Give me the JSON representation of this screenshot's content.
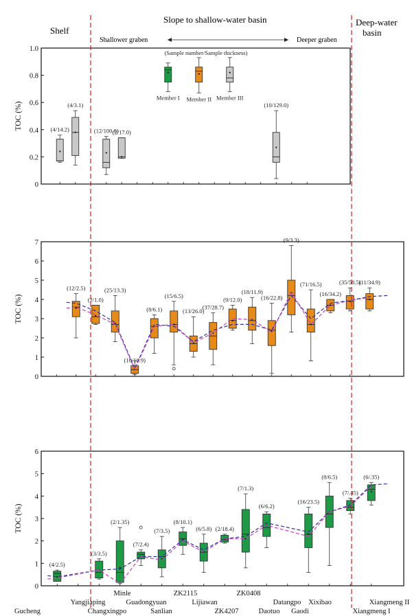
{
  "header": {
    "shelf": "Shelf",
    "slope": "Slope to shallow-water basin",
    "deep_line1": "Deep-water",
    "deep_line2": "basin",
    "shallower": "Shallower graben",
    "deeper": "Deeper graben"
  },
  "colors": {
    "gray": "#c9c9c9",
    "orange": "#e68a1a",
    "green": "#1e9a46",
    "divider": "#d42020",
    "trend_purple": "#c43ec4",
    "trend_blue": "#2f2f9a"
  },
  "chart_data": [
    {
      "type": "box",
      "panel": "top",
      "ylabel": "TOC (%)",
      "ylim": [
        0,
        1.0
      ],
      "yticks": [
        "0",
        "0.2",
        "0.4",
        "0.6",
        "0.8",
        "1.0"
      ],
      "annotation": "(Sample number/Sample thickness)",
      "boxes": [
        {
          "slot": 1,
          "color": "gray",
          "label": "(4/14.2)",
          "min": 0.16,
          "q1": 0.17,
          "median": 0.17,
          "q3": 0.33,
          "max": 0.36,
          "mean": 0.24
        },
        {
          "slot": 2,
          "color": "gray",
          "label": "(4/3.1)",
          "min": 0.14,
          "q1": 0.21,
          "median": 0.38,
          "q3": 0.49,
          "max": 0.54,
          "mean": 0.38
        },
        {
          "slot": 4,
          "color": "gray",
          "label": "(12/100.8)",
          "min": 0.07,
          "q1": 0.12,
          "median": 0.16,
          "q3": 0.33,
          "max": 0.35,
          "mean": 0.23
        },
        {
          "slot": 5,
          "color": "gray",
          "label": "(2/17.0)",
          "min": 0.19,
          "q1": 0.19,
          "median": 0.2,
          "q3": 0.34,
          "max": 0.34,
          "mean": 0.2
        },
        {
          "slot": 8,
          "color": "green",
          "label": "Member I",
          "min": 0.68,
          "q1": 0.75,
          "median": 0.84,
          "q3": 0.86,
          "max": 0.89,
          "mean": 0.82
        },
        {
          "slot": 10,
          "color": "orange",
          "label": "Member II",
          "min": 0.67,
          "q1": 0.75,
          "median": 0.83,
          "q3": 0.86,
          "max": 0.93,
          "mean": 0.81
        },
        {
          "slot": 12,
          "color": "gray",
          "label": "Member III",
          "min": 0.68,
          "q1": 0.75,
          "median": 0.78,
          "q3": 0.86,
          "max": 0.93,
          "mean": 0.82
        },
        {
          "slot": 15,
          "color": "gray",
          "label": "(10/129.0)",
          "min": 0.04,
          "q1": 0.16,
          "median": 0.2,
          "q3": 0.38,
          "max": 0.54,
          "mean": 0.27
        }
      ]
    },
    {
      "type": "box",
      "panel": "middle",
      "ylabel": "TOC (%)",
      "ylim": [
        0,
        7
      ],
      "yticks": [
        "0",
        "1",
        "2",
        "3",
        "4",
        "5",
        "6",
        "7"
      ],
      "boxes": [
        {
          "slot": 2,
          "label": "(12/2.5)",
          "min": 2.0,
          "q1": 3.1,
          "median": 3.6,
          "q3": 3.9,
          "max": 4.3,
          "mean": 3.55
        },
        {
          "slot": 3,
          "label": "(2/1.0)",
          "min": 2.7,
          "q1": 2.75,
          "median": 3.1,
          "q3": 3.7,
          "max": 3.7,
          "mean": 3.15
        },
        {
          "slot": 4,
          "label": "(25/13.3)",
          "min": 1.8,
          "q1": 2.3,
          "median": 2.7,
          "q3": 3.4,
          "max": 4.2,
          "mean": 2.75
        },
        {
          "slot": 5,
          "label": "(10/18.9)",
          "min": 0.1,
          "q1": 0.15,
          "median": 0.35,
          "q3": 0.55,
          "max": 0.8,
          "mean": 0.35
        },
        {
          "slot": 6,
          "label": "(8/6.1)",
          "min": 1.2,
          "q1": 2.0,
          "median": 2.6,
          "q3": 3.0,
          "max": 3.2,
          "mean": 2.6
        },
        {
          "slot": 7,
          "label": "(15/6.5)",
          "min": 0.6,
          "q1": 2.3,
          "median": 2.7,
          "q3": 3.4,
          "max": 3.9,
          "mean": 2.7,
          "outlier": 0.4
        },
        {
          "slot": 8,
          "label": "(13/26.0)",
          "min": 1.0,
          "q1": 1.3,
          "median": 1.7,
          "q3": 2.1,
          "max": 3.1,
          "mean": 1.75
        },
        {
          "slot": 9,
          "label": "(37/28.7)",
          "min": 0.6,
          "q1": 1.4,
          "median": 2.1,
          "q3": 2.8,
          "max": 3.3,
          "mean": 2.25
        },
        {
          "slot": 10,
          "label": "(9/12.0)",
          "min": 2.4,
          "q1": 2.5,
          "median": 2.9,
          "q3": 3.5,
          "max": 3.7,
          "mean": 2.9
        },
        {
          "slot": 11,
          "label": "(18/11.9)",
          "min": 1.7,
          "q1": 2.4,
          "median": 2.9,
          "q3": 3.6,
          "max": 4.1,
          "mean": 2.95
        },
        {
          "slot": 12,
          "label": "(16/22.8)",
          "min": 0.15,
          "q1": 1.6,
          "median": 2.4,
          "q3": 2.9,
          "max": 3.8,
          "mean": 2.35
        },
        {
          "slot": 13,
          "label": "(9/3.3)",
          "min": 2.3,
          "q1": 3.2,
          "median": 4.2,
          "q3": 5.0,
          "max": 6.8,
          "mean": 4.35
        },
        {
          "slot": 14,
          "label": "(71/16.5)",
          "min": 0.8,
          "q1": 2.3,
          "median": 2.7,
          "q3": 3.5,
          "max": 4.5,
          "mean": 2.7
        },
        {
          "slot": 15,
          "label": "(16/34.2)",
          "min": 3.3,
          "q1": 3.4,
          "median": 3.7,
          "q3": 4.0,
          "max": 4.0,
          "mean": 3.7
        },
        {
          "slot": 16,
          "label": "(35/58.5)",
          "min": 3.4,
          "q1": 3.5,
          "median": 3.9,
          "q3": 4.2,
          "max": 4.6,
          "mean": 3.9
        },
        {
          "slot": 17,
          "label": "(11/34.9)",
          "min": 3.4,
          "q1": 3.5,
          "median": 4.0,
          "q3": 4.3,
          "max": 4.6,
          "mean": 4.0
        }
      ],
      "trend_purple": [
        3.6,
        3.2,
        2.7,
        0.35,
        2.6,
        2.7,
        1.75,
        2.25,
        3.0,
        2.95,
        2.3,
        4.4,
        2.7,
        3.7,
        3.95,
        4.1
      ],
      "trend_blue": [
        3.8,
        3.4,
        2.8,
        0.4,
        2.7,
        2.6,
        1.8,
        2.4,
        2.7,
        2.7,
        2.4,
        4.2,
        3.0,
        3.8,
        3.95,
        4.15
      ]
    },
    {
      "type": "box",
      "panel": "bottom",
      "ylabel": "TOC (%)",
      "ylim": [
        0,
        6
      ],
      "yticks": [
        "0",
        "1",
        "2",
        "3",
        "4",
        "5",
        "6"
      ],
      "boxes": [
        {
          "slot": 1,
          "label": "(4/2.5)",
          "min": 0.2,
          "q1": 0.2,
          "median": 0.55,
          "q3": 0.65,
          "max": 0.7,
          "mean": 0.4
        },
        {
          "slot": 3,
          "label": "(3/3.5)",
          "min": 0.3,
          "q1": 0.35,
          "median": 0.6,
          "q3": 1.1,
          "max": 1.2,
          "mean": 0.7
        },
        {
          "slot": 4,
          "label": "(2/1.35)",
          "min": 0.1,
          "q1": 0.15,
          "median": 0.6,
          "q3": 2.0,
          "max": 2.6,
          "mean": 0.8
        },
        {
          "slot": 5,
          "label": "(7/2.4)",
          "min": 0.9,
          "q1": 1.2,
          "median": 1.4,
          "q3": 1.5,
          "max": 1.6,
          "mean": 1.3,
          "outlier": 2.6
        },
        {
          "slot": 6,
          "label": "(7/3.5)",
          "min": 0.4,
          "q1": 0.8,
          "median": 1.3,
          "q3": 1.6,
          "max": 2.2,
          "mean": 1.2
        },
        {
          "slot": 7,
          "label": "(8/10.1)",
          "min": 1.4,
          "q1": 1.8,
          "median": 2.1,
          "q3": 2.4,
          "max": 2.6,
          "mean": 2.05
        },
        {
          "slot": 8,
          "label": "(6/5.8)",
          "min": 0.6,
          "q1": 1.1,
          "median": 1.5,
          "q3": 1.9,
          "max": 2.3,
          "mean": 1.5
        },
        {
          "slot": 9,
          "label": "(2/18.4)",
          "min": 1.9,
          "q1": 1.95,
          "median": 2.05,
          "q3": 2.25,
          "max": 2.3,
          "mean": 2.1
        },
        {
          "slot": 10,
          "label": "(7/1.3)",
          "min": 0.8,
          "q1": 1.5,
          "median": 2.3,
          "q3": 3.4,
          "max": 4.1,
          "mean": 2.1
        },
        {
          "slot": 11,
          "label": "(6/6.2)",
          "min": 1.7,
          "q1": 2.2,
          "median": 2.6,
          "q3": 3.2,
          "max": 3.3,
          "mean": 2.7
        },
        {
          "slot": 13,
          "label": "(16/23.5)",
          "min": 0.6,
          "q1": 1.7,
          "median": 2.3,
          "q3": 3.2,
          "max": 3.5,
          "mean": 2.3
        },
        {
          "slot": 14,
          "label": "(8/6.5)",
          "min": 0.9,
          "q1": 2.6,
          "median": 3.2,
          "q3": 4.0,
          "max": 4.6,
          "mean": 3.3
        },
        {
          "slot": 15,
          "label": "(7/.45)",
          "min": 3.2,
          "q1": 3.35,
          "median": 3.5,
          "q3": 3.8,
          "max": 3.9,
          "mean": 3.55
        },
        {
          "slot": 16,
          "label": "(6/.35)",
          "min": 3.6,
          "q1": 3.8,
          "median": 4.3,
          "q3": 4.5,
          "max": 4.6,
          "mean": 4.2
        }
      ],
      "trend_purple": [
        0.35,
        0.7,
        0.1,
        1.3,
        1.15,
        2.0,
        1.5,
        2.1,
        2.1,
        2.7,
        2.2,
        3.3,
        3.55,
        4.45
      ],
      "trend_blue": [
        0.4,
        0.7,
        0.75,
        1.3,
        1.3,
        2.05,
        1.6,
        2.1,
        2.2,
        2.8,
        2.4,
        3.3,
        3.6,
        4.5
      ]
    }
  ],
  "locations": [
    {
      "name": "Gucheng",
      "row": "bottom"
    },
    {
      "name": "Yangjiaping",
      "row": "top"
    },
    {
      "name": "Changxingpo",
      "row": "bottom"
    },
    {
      "name": "Minle",
      "row": "upper"
    },
    {
      "name": "Guadongyuan",
      "row": "top"
    },
    {
      "name": "Sanlian",
      "row": "bottom"
    },
    {
      "name": "ZK2115",
      "row": "upper"
    },
    {
      "name": "Lijiawan",
      "row": "top"
    },
    {
      "name": "ZK4207",
      "row": "bottom"
    },
    {
      "name": "ZK0408",
      "row": "upper"
    },
    {
      "name": "Daotuo",
      "row": "bottom"
    },
    {
      "name": "Datangpo",
      "row": "top"
    },
    {
      "name": "Gaodi",
      "row": "bottom"
    },
    {
      "name": "Xixibao",
      "row": "top"
    },
    {
      "name": "Xiangmeng I",
      "row": "bottom"
    },
    {
      "name": "Xiangmeng II",
      "row": "top"
    }
  ]
}
